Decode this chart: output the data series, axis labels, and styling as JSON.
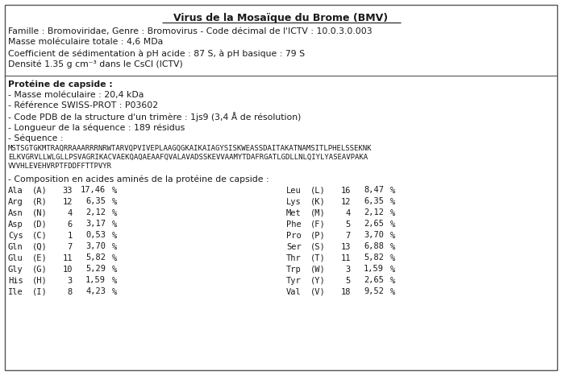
{
  "title": "Virus de la Mosaïque du Brome (BMV)",
  "section1_lines": [
    "Famille : Bromoviridae, Genre : Bromovirus - Code décimal de l'ICTV : 10.0.3.0.003",
    "Masse moléculaire totale : 4,6 MDa",
    "Coefficient de sédimentation à pH acide : 87 S, à pH basique : 79 S",
    "Densité 1.35 g cm⁻³ dans le CsCl (ICTV)"
  ],
  "section2_header": "Protéine de capside :",
  "section2_lines": [
    "- Masse moléculaire : 20,4 kDa",
    "- Référence SWISS-PROT : P03602",
    "- Code PDB de la structure d'un trimère : 1js9 (3,4 Å de résolution)",
    "- Longueur de la séquence : 189 résidus",
    "- Séquence :"
  ],
  "sequence_line1": "MSTSGTGKMTRAQRRAAARRRNRWTARVQPVIVEPLAAGQGKAIKAIAGYSISKWEASSDAITAKATNAMSITLPHELSSEKNK",
  "sequence_line2": "ELKVGRVLLWLGLLPSVAGRIKACVAEKQAQAEAAFQVALAVADSSKEVVAAMYTDAFRGATLGDLLNLQIYLYASEAVPAKA",
  "sequence_line3": "VVVHLEVEHVRPTFDDFFTTPVYR",
  "composition_label": "- Composition en acides aminés de la protéine de capside :",
  "amino_acids_left": [
    [
      "Ala",
      "(A)",
      "33",
      "17,46",
      "%"
    ],
    [
      "Arg",
      "(R)",
      "12",
      "6,35",
      "%"
    ],
    [
      "Asn",
      "(N)",
      "4",
      "2,12",
      "%"
    ],
    [
      "Asp",
      "(D)",
      "6",
      "3,17",
      "%"
    ],
    [
      "Cys",
      "(C)",
      "1",
      "0,53",
      "%"
    ],
    [
      "Gln",
      "(Q)",
      "7",
      "3,70",
      "%"
    ],
    [
      "Glu",
      "(E)",
      "11",
      "5,82",
      "%"
    ],
    [
      "Gly",
      "(G)",
      "10",
      "5,29",
      "%"
    ],
    [
      "His",
      "(H)",
      "3",
      "1,59",
      "%"
    ],
    [
      "Ile",
      "(I)",
      "8",
      "4,23",
      "%"
    ]
  ],
  "amino_acids_right": [
    [
      "Leu",
      "(L)",
      "16",
      "8,47",
      "%"
    ],
    [
      "Lys",
      "(K)",
      "12",
      "6,35",
      "%"
    ],
    [
      "Met",
      "(M)",
      "4",
      "2,12",
      "%"
    ],
    [
      "Phe",
      "(F)",
      "5",
      "2,65",
      "%"
    ],
    [
      "Pro",
      "(P)",
      "7",
      "3,70",
      "%"
    ],
    [
      "Ser",
      "(S)",
      "13",
      "6,88",
      "%"
    ],
    [
      "Thr",
      "(T)",
      "11",
      "5,82",
      "%"
    ],
    [
      "Trp",
      "(W)",
      "3",
      "1,59",
      "%"
    ],
    [
      "Tyr",
      "(Y)",
      "5",
      "2,65",
      "%"
    ],
    [
      "Val",
      "(V)",
      "18",
      "9,52",
      "%"
    ]
  ],
  "bg_color": "#ffffff",
  "text_color": "#1a1a1a",
  "border_color": "#555555",
  "title_fontsize": 9.0,
  "body_fontsize": 7.8,
  "mono_fontsize": 6.5,
  "aa_fontsize": 7.5
}
